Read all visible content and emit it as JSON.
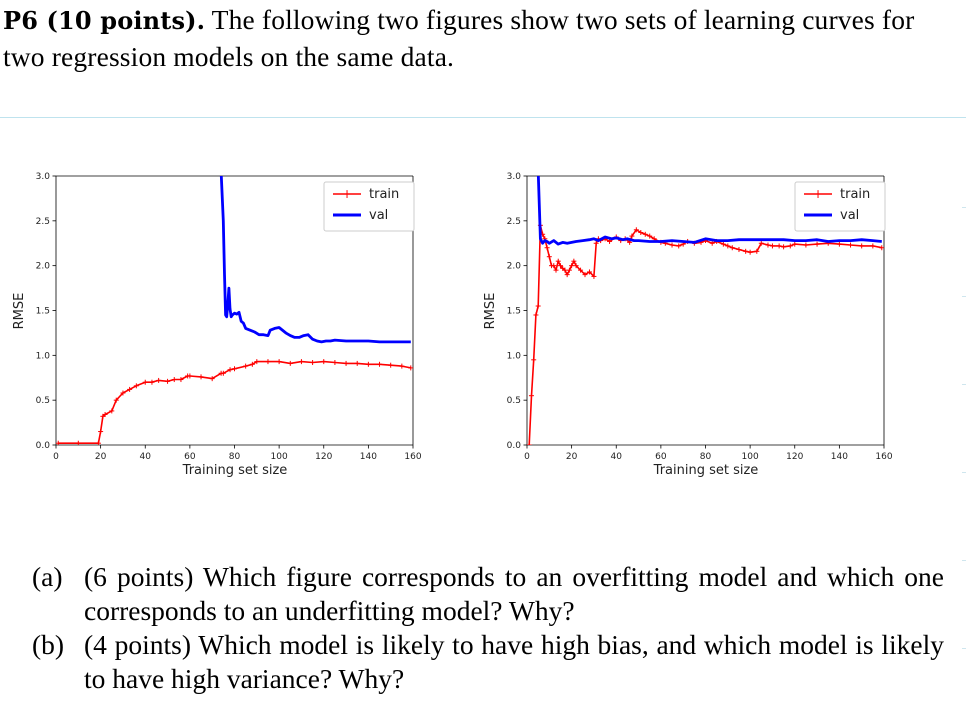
{
  "problem": {
    "label": "P6 (10 points).",
    "text": "The following two figures show two sets of learning curves for two regression models on the same data."
  },
  "charts": [
    {
      "legend": {
        "train": "train",
        "val": "val"
      },
      "xlabel": "Training set size",
      "ylabel": "RMSE"
    },
    {
      "legend": {
        "train": "train",
        "val": "val"
      },
      "xlabel": "Training set size",
      "ylabel": "RMSE"
    }
  ],
  "chart_data": [
    {
      "type": "line",
      "title": "",
      "xlabel": "Training set size",
      "ylabel": "RMSE",
      "xlim": [
        0,
        160
      ],
      "ylim": [
        0,
        3.0
      ],
      "xticks": [
        "0",
        "20",
        "40",
        "60",
        "80",
        "100",
        "120",
        "140",
        "160"
      ],
      "yticks": [
        "0.0",
        "0.5",
        "1.0",
        "1.5",
        "2.0",
        "2.5",
        "3.0"
      ],
      "legend_position": "top-right",
      "series": [
        {
          "name": "train",
          "color": "#ff0000",
          "marker": "+",
          "x": [
            1,
            10,
            19,
            20,
            21,
            22,
            25,
            27,
            30,
            33,
            36,
            40,
            43,
            46,
            50,
            53,
            56,
            59,
            60,
            65,
            70,
            74,
            75,
            78,
            80,
            85,
            88,
            90,
            95,
            100,
            105,
            110,
            115,
            120,
            125,
            130,
            135,
            140,
            145,
            150,
            155,
            159
          ],
          "y": [
            0.02,
            0.02,
            0.02,
            0.15,
            0.32,
            0.34,
            0.38,
            0.5,
            0.58,
            0.62,
            0.66,
            0.7,
            0.7,
            0.72,
            0.71,
            0.73,
            0.73,
            0.77,
            0.77,
            0.76,
            0.74,
            0.8,
            0.8,
            0.84,
            0.85,
            0.88,
            0.9,
            0.93,
            0.93,
            0.93,
            0.91,
            0.93,
            0.92,
            0.93,
            0.92,
            0.91,
            0.91,
            0.9,
            0.9,
            0.89,
            0.88,
            0.86
          ]
        },
        {
          "name": "val",
          "color": "#0000ff",
          "marker": "",
          "x": [
            74,
            75,
            75.5,
            76,
            76.5,
            77,
            77.5,
            78,
            78.5,
            79,
            80,
            81,
            82,
            83,
            84,
            85,
            87,
            89,
            91,
            93,
            95,
            96,
            98,
            100,
            103,
            105,
            107,
            109,
            111,
            113,
            115,
            117,
            119,
            121,
            123,
            125,
            130,
            135,
            140,
            145,
            150,
            155,
            159
          ],
          "y": [
            3.05,
            2.5,
            1.9,
            1.45,
            1.43,
            1.57,
            1.75,
            1.52,
            1.43,
            1.45,
            1.47,
            1.46,
            1.48,
            1.38,
            1.36,
            1.3,
            1.28,
            1.26,
            1.23,
            1.23,
            1.22,
            1.28,
            1.3,
            1.31,
            1.25,
            1.22,
            1.2,
            1.2,
            1.22,
            1.23,
            1.18,
            1.16,
            1.15,
            1.16,
            1.16,
            1.17,
            1.16,
            1.16,
            1.16,
            1.15,
            1.15,
            1.15,
            1.15
          ]
        }
      ]
    },
    {
      "type": "line",
      "title": "",
      "xlabel": "Training set size",
      "ylabel": "RMSE",
      "xlim": [
        0,
        160
      ],
      "ylim": [
        0,
        3.0
      ],
      "xticks": [
        "0",
        "20",
        "40",
        "60",
        "80",
        "100",
        "120",
        "140",
        "160"
      ],
      "yticks": [
        "0.0",
        "0.5",
        "1.0",
        "1.5",
        "2.0",
        "2.5",
        "3.0"
      ],
      "legend_position": "top-right",
      "series": [
        {
          "name": "train",
          "color": "#ff0000",
          "marker": "+",
          "x": [
            1,
            2,
            3,
            4,
            5,
            6,
            7,
            8,
            9,
            10,
            11,
            12,
            13,
            14,
            15,
            16,
            17,
            18,
            19,
            20,
            21,
            22,
            24,
            26,
            28,
            30,
            31,
            32,
            33,
            35,
            37,
            40,
            42,
            44,
            46,
            47,
            49,
            51,
            53,
            55,
            57,
            60,
            62,
            65,
            68,
            70,
            72,
            75,
            78,
            80,
            83,
            85,
            88,
            90,
            92,
            95,
            98,
            100,
            103,
            105,
            108,
            110,
            113,
            115,
            118,
            120,
            125,
            130,
            135,
            140,
            145,
            150,
            155,
            159
          ],
          "y": [
            0.0,
            0.55,
            0.95,
            1.45,
            1.55,
            2.45,
            2.35,
            2.3,
            2.2,
            2.1,
            2.0,
            2.0,
            1.95,
            2.05,
            2.0,
            1.97,
            1.95,
            1.9,
            1.95,
            2.0,
            2.05,
            2.0,
            1.95,
            1.9,
            1.93,
            1.88,
            2.25,
            2.3,
            2.28,
            2.3,
            2.27,
            2.32,
            2.28,
            2.3,
            2.26,
            2.33,
            2.4,
            2.37,
            2.35,
            2.33,
            2.3,
            2.26,
            2.25,
            2.23,
            2.22,
            2.24,
            2.27,
            2.25,
            2.26,
            2.28,
            2.25,
            2.27,
            2.24,
            2.22,
            2.2,
            2.18,
            2.16,
            2.15,
            2.16,
            2.25,
            2.23,
            2.22,
            2.22,
            2.21,
            2.22,
            2.24,
            2.23,
            2.24,
            2.25,
            2.24,
            2.23,
            2.22,
            2.22,
            2.2
          ]
        },
        {
          "name": "val",
          "color": "#0000ff",
          "marker": "",
          "x": [
            5,
            6,
            7,
            8,
            9,
            10,
            12,
            14,
            16,
            18,
            20,
            22,
            25,
            28,
            30,
            32,
            35,
            38,
            40,
            43,
            45,
            48,
            50,
            55,
            60,
            65,
            70,
            75,
            80,
            85,
            90,
            95,
            100,
            105,
            110,
            115,
            120,
            125,
            130,
            135,
            140,
            145,
            150,
            155,
            159
          ],
          "y": [
            3.05,
            2.3,
            2.25,
            2.28,
            2.27,
            2.25,
            2.28,
            2.24,
            2.26,
            2.25,
            2.26,
            2.27,
            2.28,
            2.29,
            2.3,
            2.28,
            2.32,
            2.3,
            2.31,
            2.29,
            2.3,
            2.28,
            2.28,
            2.27,
            2.27,
            2.28,
            2.27,
            2.26,
            2.3,
            2.28,
            2.28,
            2.29,
            2.29,
            2.29,
            2.29,
            2.29,
            2.28,
            2.28,
            2.29,
            2.27,
            2.28,
            2.28,
            2.29,
            2.28,
            2.27
          ]
        }
      ]
    }
  ],
  "questions": [
    {
      "label": "(a)",
      "text": "(6 points) Which figure corresponds to an overfitting model and which one corresponds to an underfitting model? Why?"
    },
    {
      "label": "(b)",
      "text": "(4 points) Which model is likely to have high bias, and which model is likely to have high variance? Why?"
    }
  ]
}
